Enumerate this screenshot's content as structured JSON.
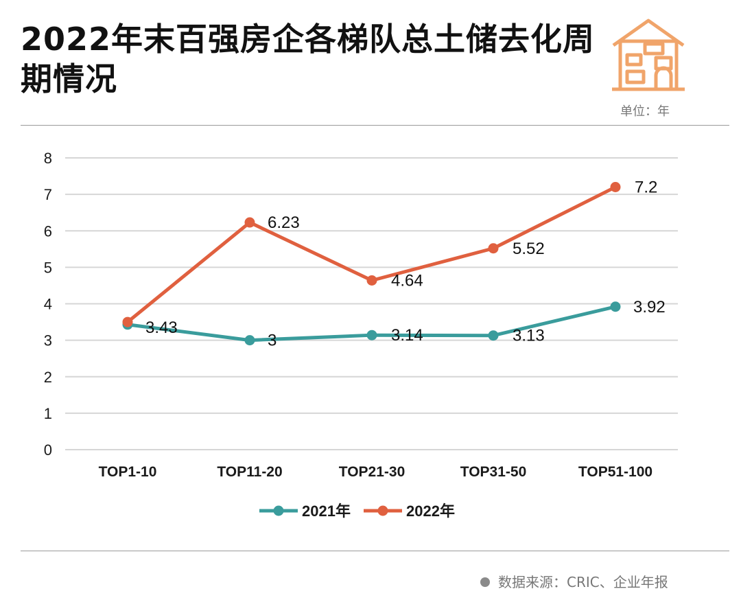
{
  "header": {
    "title": "2022年末百强房企各梯队总土储去化周期情况",
    "unit": "单位：年",
    "icon": "house-icon"
  },
  "footer": {
    "source": "数据来源：CRIC、企业年报"
  },
  "colors": {
    "series_2021": "#3a9c9c",
    "series_2022": "#e0603f",
    "grid": "#d6d6d6",
    "icon": "#f0a46a"
  },
  "chart_data": {
    "type": "line",
    "title": "2022年末百强房企各梯队总土储去化周期情况",
    "xlabel": "",
    "ylabel": "单位：年",
    "categories": [
      "TOP1-10",
      "TOP11-20",
      "TOP21-30",
      "TOP31-50",
      "TOP51-100"
    ],
    "ylim": [
      0,
      8
    ],
    "yticks": [
      0,
      1,
      2,
      3,
      4,
      5,
      6,
      7,
      8
    ],
    "grid": true,
    "legend_position": "bottom-center",
    "series": [
      {
        "name": "2021年",
        "values": [
          3.43,
          3,
          3.14,
          3.13,
          3.92
        ],
        "labels": [
          "3.43",
          "3",
          "3.14",
          "3.13",
          "3.92"
        ]
      },
      {
        "name": "2022年",
        "values": [
          3.5,
          6.23,
          4.64,
          5.52,
          7.2
        ],
        "labels": [
          "",
          "6.23",
          "4.64",
          "5.52",
          "7.2"
        ]
      }
    ]
  }
}
